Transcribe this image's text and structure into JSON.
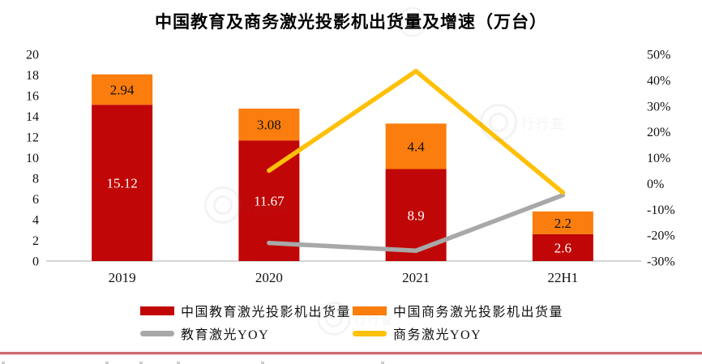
{
  "title": "中国教育及商务激光投影机出货量及增速（万台）",
  "colors": {
    "education_bar": "#c00606",
    "business_bar": "#fa7d0d",
    "education_line": "#a8a8a8",
    "business_line": "#ffc008",
    "axis_line": "#d6d6d6",
    "tick_text": "#111111",
    "label_on_red": "#ffffff",
    "label_on_orange": "#111111",
    "divider": "#cf6b72"
  },
  "chart_data": {
    "type": "combo (stacked bar + line)",
    "categories": [
      "2019",
      "2020",
      "2021",
      "22H1"
    ],
    "bar_series": [
      {
        "name": "中国教育激光投影机出货量",
        "axis": "left",
        "values": [
          15.12,
          11.67,
          8.9,
          2.6
        ],
        "labels": [
          "15.12",
          "11.67",
          "8.9",
          "2.6"
        ],
        "color_key": "education_bar",
        "label_color_key": "label_on_red"
      },
      {
        "name": "中国商务激光投影机出货量",
        "axis": "left",
        "values": [
          2.94,
          3.08,
          4.4,
          2.2
        ],
        "labels": [
          "2.94",
          "3.08",
          "4.4",
          "2.2"
        ],
        "color_key": "business_bar",
        "label_color_key": "label_on_orange"
      }
    ],
    "line_series": [
      {
        "name": "教育激光YOY",
        "axis": "right",
        "values_pct": [
          null,
          -23,
          -26,
          -4.5
        ],
        "color_key": "education_line"
      },
      {
        "name": "商务激光YOY",
        "axis": "right",
        "values_pct": [
          null,
          5,
          43.5,
          -3.5
        ],
        "color_key": "business_line"
      }
    ],
    "left_axis": {
      "min": 0,
      "max": 20,
      "step": 2,
      "tick_labels": [
        "20",
        "18",
        "16",
        "14",
        "12",
        "10",
        "8",
        "6",
        "4",
        "2",
        "0"
      ]
    },
    "right_axis": {
      "min": -30,
      "max": 50,
      "step": 10,
      "suffix": "%",
      "tick_labels": [
        "50%",
        "40%",
        "30%",
        "20%",
        "10%",
        "0%",
        "-10%",
        "-20%",
        "-30%"
      ]
    },
    "stacked": true,
    "grid": false,
    "legend_position": "bottom"
  },
  "legend": {
    "items": [
      {
        "label": "中国教育激光投影机出货量",
        "type": "bar",
        "color_key": "education_bar"
      },
      {
        "label": "中国商务激光投影机出货量",
        "type": "bar",
        "color_key": "business_bar"
      },
      {
        "label": "教育激光YOY",
        "type": "line",
        "color_key": "education_line"
      },
      {
        "label": "商务激光YOY",
        "type": "line",
        "color_key": "business_line"
      }
    ]
  },
  "watermark": {
    "text": "行行查"
  }
}
